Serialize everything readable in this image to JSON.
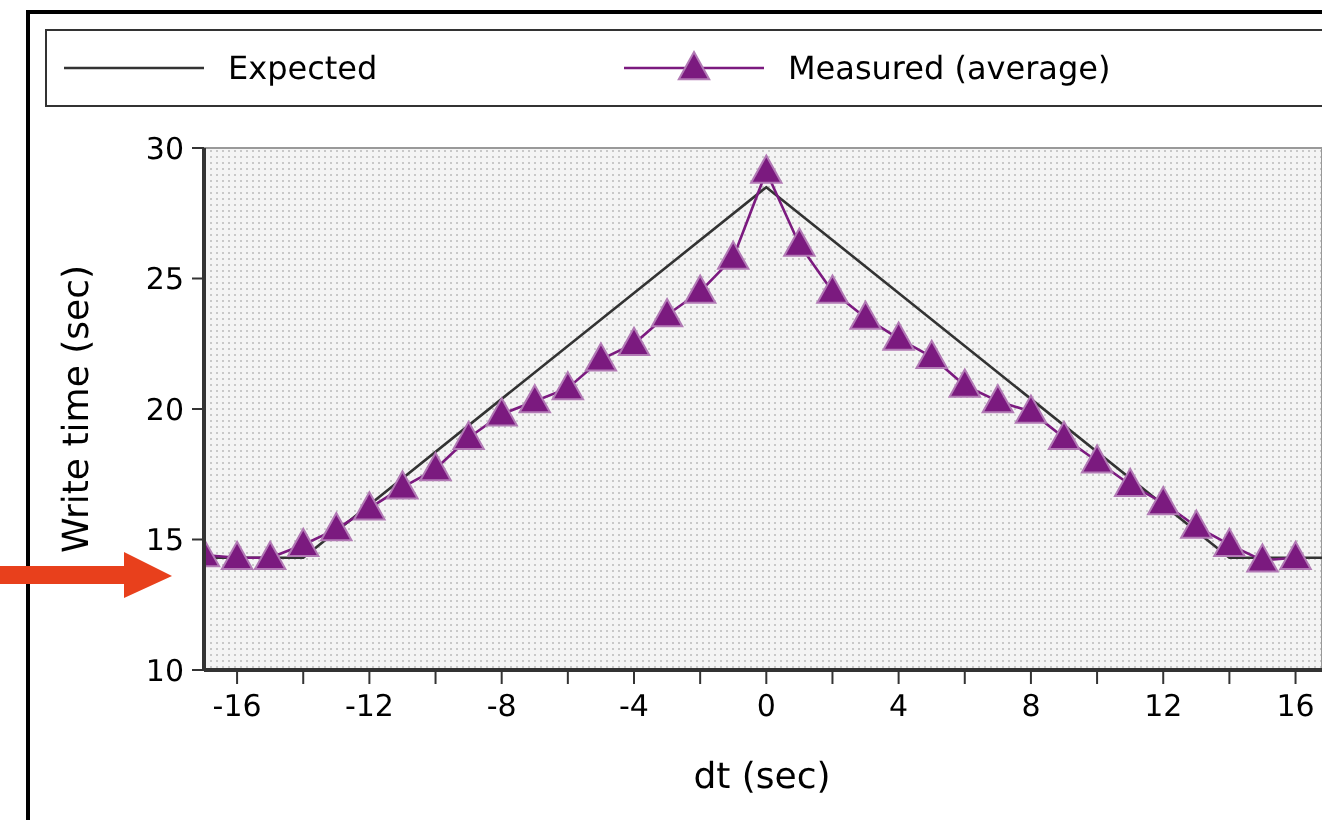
{
  "chart_data": {
    "type": "line",
    "xlabel": "dt (sec)",
    "ylabel": "Write time (sec)",
    "legend": "top",
    "grid": false,
    "xlim": [
      -17,
      16.8
    ],
    "ylim": [
      10,
      30
    ],
    "xticks": [
      -16,
      {
        "value": -14,
        "label": null
      },
      -12,
      {
        "value": -10,
        "label": null
      },
      -8,
      {
        "value": -6,
        "label": null
      },
      -4,
      {
        "value": -2,
        "label": null
      },
      0,
      {
        "value": 2,
        "label": null
      },
      4,
      {
        "value": 6,
        "label": null
      },
      8,
      {
        "value": 10,
        "label": null
      },
      12,
      {
        "value": 14,
        "label": null
      },
      16
    ],
    "yticks": [
      10,
      15,
      20,
      25,
      30
    ],
    "series": [
      {
        "name": "Expected",
        "color": "#333333",
        "marker": "none",
        "x": [
          -17,
          -14,
          0,
          14,
          16.8
        ],
        "values": [
          14.3,
          14.3,
          28.5,
          14.3,
          14.3
        ]
      },
      {
        "name": "Measured (average)",
        "color": "#7b1a7f",
        "marker": "triangle",
        "x": [
          -17,
          -16,
          -15,
          -14,
          -13,
          -12,
          -11,
          -10,
          -9,
          -8,
          -7,
          -6,
          -5,
          -4,
          -3,
          -2,
          -1,
          0,
          1,
          2,
          3,
          4,
          5,
          6,
          7,
          8,
          9,
          10,
          11,
          12,
          13,
          14,
          15,
          16
        ],
        "values": [
          14.4,
          14.3,
          14.3,
          14.8,
          15.4,
          16.2,
          17.0,
          17.7,
          18.9,
          19.8,
          20.3,
          20.8,
          21.9,
          22.5,
          23.6,
          24.5,
          25.8,
          29.1,
          26.3,
          24.5,
          23.5,
          22.7,
          22.0,
          20.9,
          20.3,
          19.9,
          18.9,
          18.0,
          17.1,
          16.4,
          15.5,
          14.8,
          14.2,
          14.3
        ]
      }
    ]
  }
}
